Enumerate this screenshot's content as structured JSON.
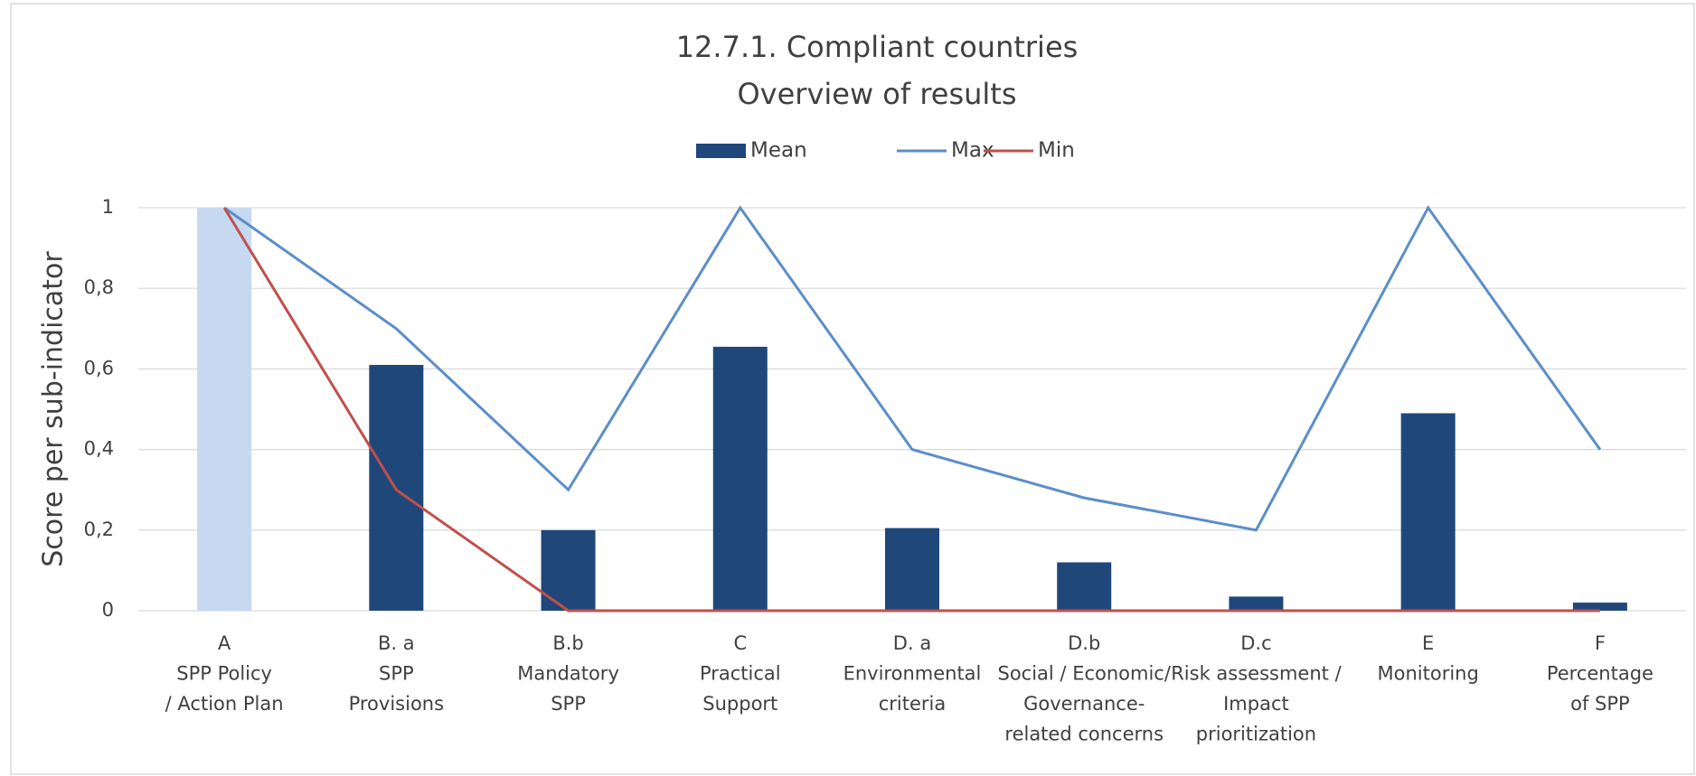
{
  "chart_data": {
    "type": "bar-line",
    "title": [
      "12.7.1. Compliant countries",
      "Overview of results"
    ],
    "y_label": "Score per sub-indicator",
    "categories": [
      [
        "A",
        "SPP Policy",
        "/ Action Plan"
      ],
      [
        "B. a",
        "SPP",
        "Provisions"
      ],
      [
        "B.b",
        "Mandatory",
        "SPP"
      ],
      [
        "C",
        "Practical",
        "Support"
      ],
      [
        "D. a",
        "Environmental",
        "criteria"
      ],
      [
        "D.b",
        "Social / Economic/",
        "Governance-",
        "related concerns"
      ],
      [
        "D.c",
        "Risk assessment /",
        "Impact",
        "prioritization"
      ],
      [
        "E",
        "Monitoring"
      ],
      [
        "F",
        "Percentage",
        "of SPP"
      ]
    ],
    "series": [
      {
        "name": "Mean",
        "kind": "bar",
        "color": "#1f477a",
        "colors": [
          "#c6d9f1",
          "#1f477a",
          "#1f477a",
          "#1f477a",
          "#1f477a",
          "#1f477a",
          "#1f477a",
          "#1f477a",
          "#1f477a"
        ],
        "values": [
          1,
          0.61,
          0.2,
          0.655,
          0.205,
          0.12,
          0.035,
          0.49,
          0.02
        ]
      },
      {
        "name": "Max",
        "kind": "line",
        "color": "#5b8ec9",
        "values": [
          1,
          0.7,
          0.3,
          1,
          0.4,
          0.28,
          0.2,
          1,
          0.4
        ]
      },
      {
        "name": "Min",
        "kind": "line",
        "color": "#c0504d",
        "values": [
          1,
          0.3,
          0,
          0,
          0,
          0,
          0,
          0,
          0
        ]
      }
    ],
    "ylim": [
      0,
      1
    ],
    "yticks": [
      0,
      {
        "value": 0.2,
        "label": "0,2"
      },
      {
        "value": 0.4,
        "label": "0,4"
      },
      {
        "value": 0.6,
        "label": "0,6"
      },
      {
        "value": 0.8,
        "label": "0,8"
      },
      1
    ],
    "grid": true,
    "legend": "top"
  }
}
